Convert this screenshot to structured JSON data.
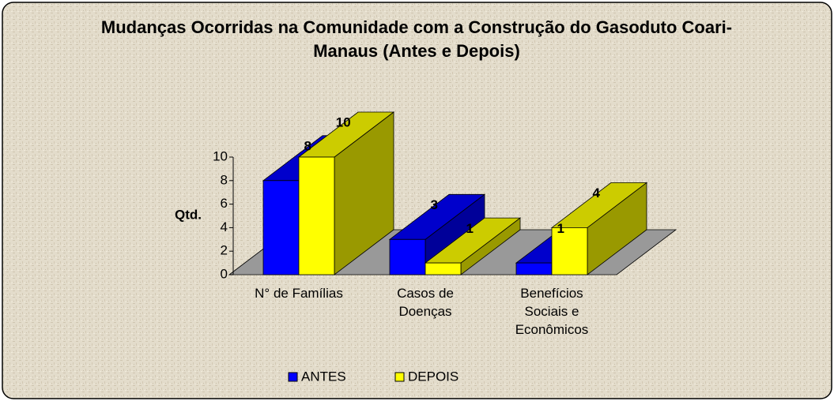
{
  "chart_data": {
    "type": "bar3d",
    "title": "Mudanças Ocorridas na Comunidade com a Construção do Gasoduto Coari-Manaus (Antes e Depois)",
    "y_label": "Qtd.",
    "categories": [
      "N° de Famílias",
      "Casos de Doenças",
      "Benefícios Sociais e Econômicos"
    ],
    "series": [
      {
        "name": "ANTES",
        "color": "#0000ff",
        "values": [
          8,
          3,
          1
        ]
      },
      {
        "name": "DEPOIS",
        "color": "#ffff00",
        "values": [
          10,
          1,
          4
        ]
      }
    ],
    "ylim": [
      0,
      10
    ],
    "yticks": [
      0,
      2,
      4,
      6,
      8,
      10
    ],
    "grid": false,
    "legend": "bottom"
  }
}
